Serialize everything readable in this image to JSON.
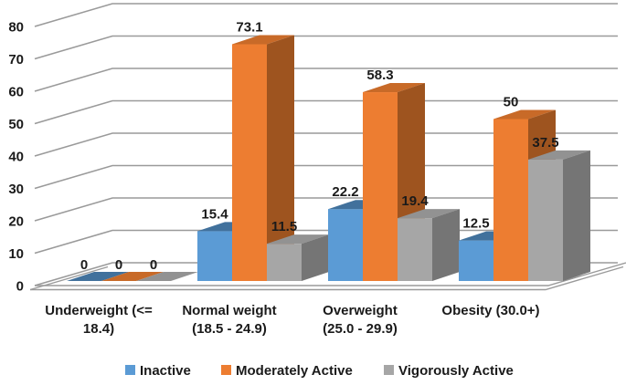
{
  "chart_data": {
    "type": "bar",
    "variant": "3d-clustered-column",
    "title": "",
    "categories": [
      "Underweight (<= 18.4)",
      "Normal weight (18.5 - 24.9)",
      "Overweight (25.0 - 29.9)",
      "Obesity (30.0+)"
    ],
    "category_label_lines": [
      [
        "Underweight (<=",
        "18.4)"
      ],
      [
        "Normal weight",
        "(18.5 - 24.9)"
      ],
      [
        "Overweight",
        "(25.0 - 29.9)"
      ],
      [
        "Obesity (30.0+)"
      ]
    ],
    "series": [
      {
        "name": "Inactive",
        "values": [
          0,
          15.4,
          22.2,
          12.5
        ],
        "color": "#5b9bd5",
        "top_color": "#41719c",
        "side_color": "#34618c"
      },
      {
        "name": "Moderately Active",
        "values": [
          0,
          73.1,
          58.3,
          50
        ],
        "color": "#ed7d31",
        "top_color": "#c86a28",
        "side_color": "#9e541f"
      },
      {
        "name": "Vigorously Active",
        "values": [
          0,
          11.5,
          19.4,
          37.5
        ],
        "color": "#a6a6a6",
        "top_color": "#929292",
        "side_color": "#757575"
      }
    ],
    "y_axis": {
      "min": 0,
      "max": 80,
      "step": 10,
      "tick_labels": [
        "0",
        "10",
        "20",
        "30",
        "40",
        "50",
        "60",
        "70",
        "80"
      ]
    },
    "legend": {
      "position": "bottom",
      "items": [
        "Inactive",
        "Moderately Active",
        "Vigorously Active"
      ]
    },
    "grid": true,
    "data_labels_shown": true,
    "background": "#ffffff",
    "gridline_color": "#9a9a9a",
    "text_color": "#1a1a1a"
  }
}
